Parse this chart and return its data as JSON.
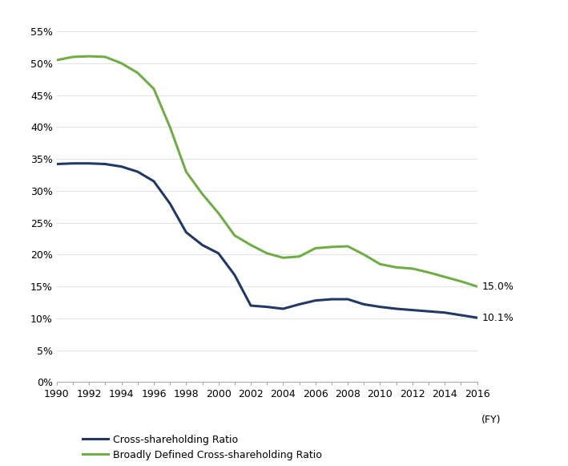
{
  "xlabel": "(FY)",
  "years": [
    1990,
    1991,
    1992,
    1993,
    1994,
    1995,
    1996,
    1997,
    1998,
    1999,
    2000,
    2001,
    2002,
    2003,
    2004,
    2005,
    2006,
    2007,
    2008,
    2009,
    2010,
    2011,
    2012,
    2013,
    2014,
    2015,
    2016
  ],
  "cross_shareholding": [
    34.2,
    34.3,
    34.3,
    34.2,
    33.8,
    33.0,
    31.5,
    28.0,
    23.5,
    21.5,
    20.2,
    16.8,
    12.0,
    11.8,
    11.5,
    12.2,
    12.8,
    13.0,
    13.0,
    12.2,
    11.8,
    11.5,
    11.3,
    11.1,
    10.9,
    10.5,
    10.1
  ],
  "broadly_defined": [
    50.5,
    51.0,
    51.1,
    51.0,
    50.0,
    48.5,
    46.0,
    40.0,
    33.0,
    29.5,
    26.5,
    23.0,
    21.5,
    20.2,
    19.5,
    19.7,
    21.0,
    21.2,
    21.3,
    20.0,
    18.5,
    18.0,
    17.8,
    17.2,
    16.5,
    15.8,
    15.0
  ],
  "cross_color": "#1f3864",
  "broadly_color": "#70ad47",
  "end_label_cross": "10.1%",
  "end_label_broadly": "15.0%",
  "ylim": [
    0,
    57
  ],
  "yticks": [
    0,
    5,
    10,
    15,
    20,
    25,
    30,
    35,
    40,
    45,
    50,
    55
  ],
  "xlim": [
    1990,
    2016
  ],
  "xticks_labeled": [
    1990,
    1992,
    1994,
    1996,
    1998,
    2000,
    2002,
    2004,
    2006,
    2008,
    2010,
    2012,
    2014,
    2016
  ],
  "xticks_all": [
    1990,
    1991,
    1992,
    1993,
    1994,
    1995,
    1996,
    1997,
    1998,
    1999,
    2000,
    2001,
    2002,
    2003,
    2004,
    2005,
    2006,
    2007,
    2008,
    2009,
    2010,
    2011,
    2012,
    2013,
    2014,
    2015,
    2016
  ],
  "legend_cross": "Cross-shareholding Ratio",
  "legend_broadly": "Broadly Defined Cross-shareholding Ratio",
  "line_width": 2.2
}
